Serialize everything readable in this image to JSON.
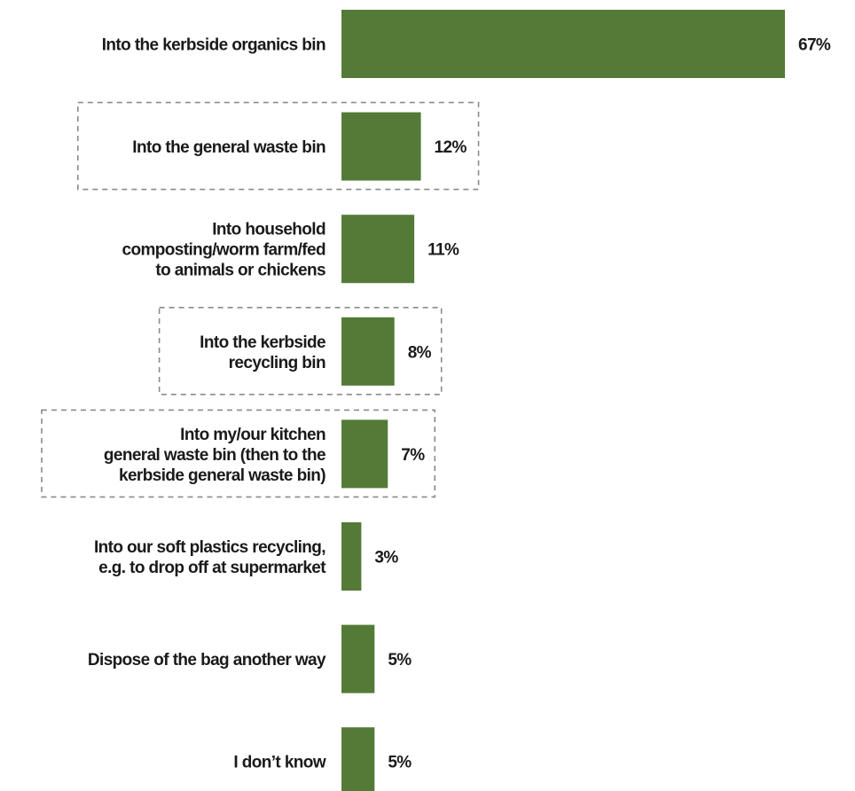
{
  "chart_data": {
    "type": "bar",
    "orientation": "horizontal",
    "categories": [
      [
        "Into the kerbside organics bin"
      ],
      [
        "Into the general waste bin"
      ],
      [
        "Into household",
        "composting/worm farm/fed",
        "to animals or chickens"
      ],
      [
        "Into the kerbside",
        "recycling bin"
      ],
      [
        "Into my/our kitchen",
        "general waste bin (then to the",
        "kerbside general waste bin)"
      ],
      [
        "Into our soft plastics recycling,",
        "e.g. to drop off at supermarket"
      ],
      [
        "Dispose of the bag another way"
      ],
      [
        "I don’t know"
      ]
    ],
    "values": [
      67,
      12,
      11,
      8,
      7,
      3,
      5,
      5
    ],
    "value_labels": [
      "67%",
      "12%",
      "11%",
      "8%",
      "7%",
      "3%",
      "5%",
      "5%"
    ],
    "highlighted": [
      false,
      true,
      false,
      true,
      true,
      false,
      false,
      false
    ],
    "xlim": [
      0,
      67
    ],
    "bar_color": "#537a37",
    "highlight_border_color": "#8a8a8a",
    "grid": false,
    "legend": "none"
  }
}
